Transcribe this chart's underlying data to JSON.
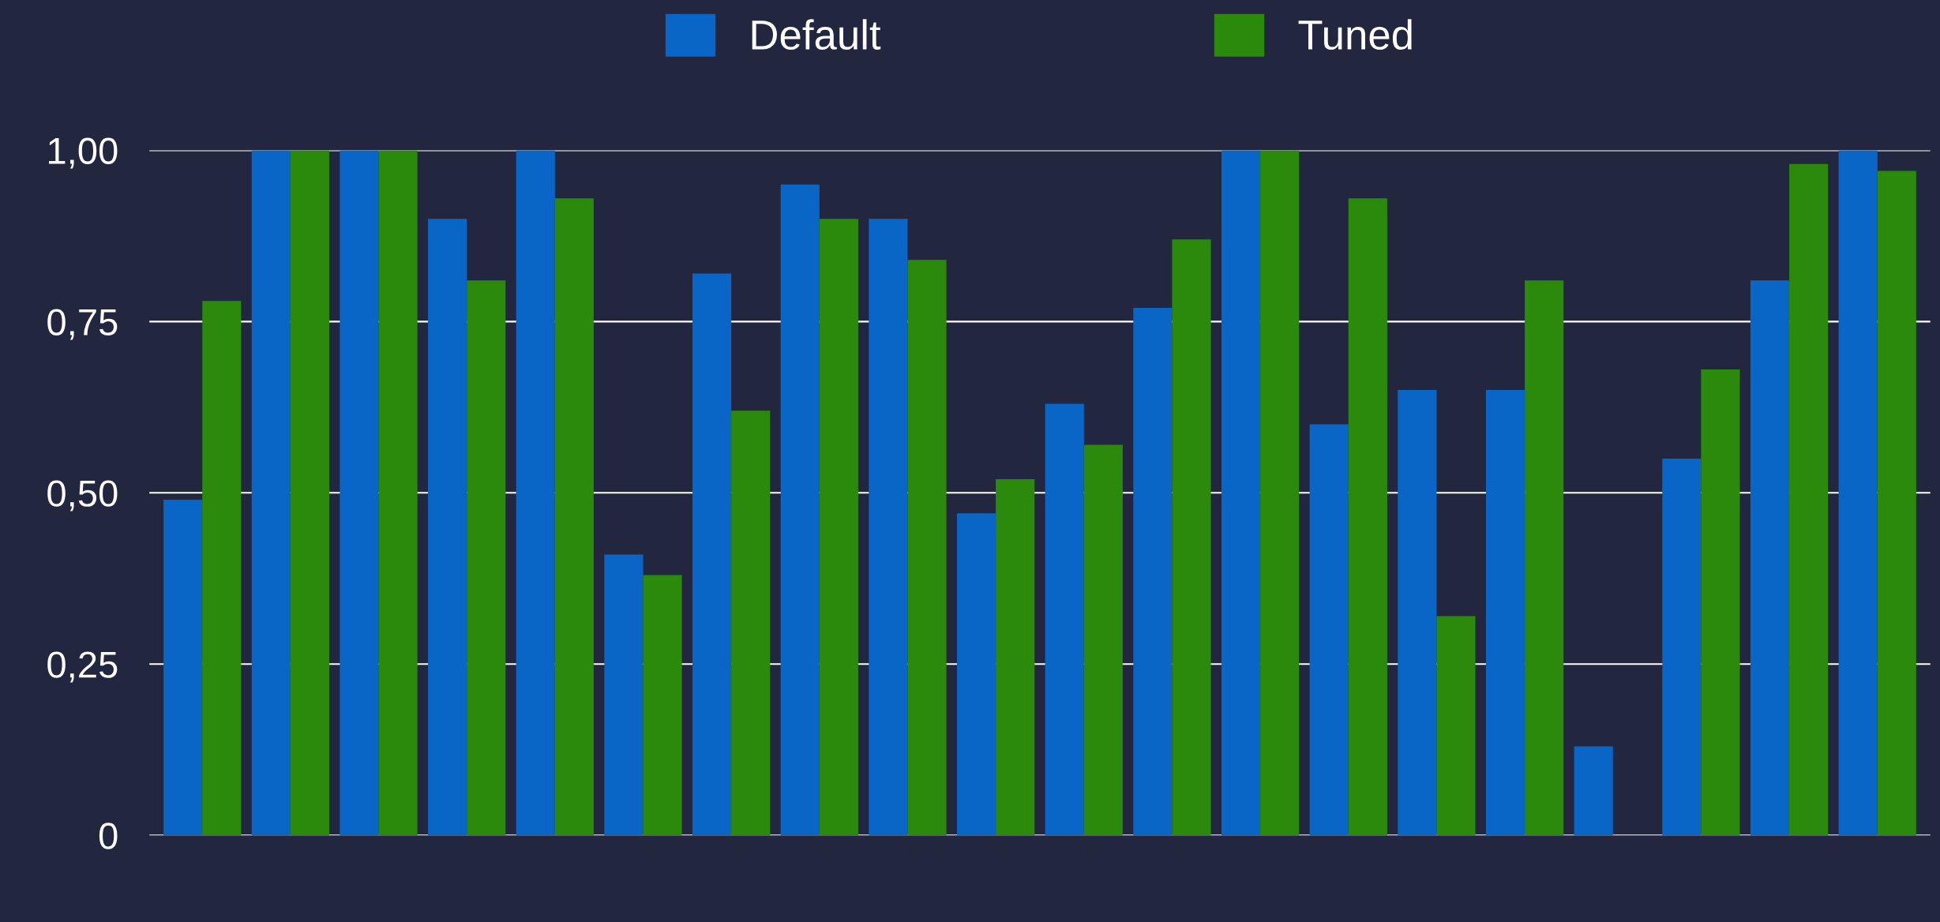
{
  "chart_data": {
    "type": "bar",
    "categories": [
      null,
      null,
      null,
      null,
      null,
      null,
      null,
      null,
      null,
      null,
      null,
      null,
      null,
      null,
      null,
      null,
      null,
      null,
      null,
      null
    ],
    "series": [
      {
        "name": "Default",
        "color": "#0a66c6",
        "values": [
          0.49,
          1.0,
          1.0,
          0.9,
          1.0,
          0.41,
          0.82,
          0.95,
          0.9,
          0.47,
          0.63,
          0.77,
          1.0,
          0.6,
          0.65,
          0.65,
          0.13,
          0.55,
          0.81,
          1.0
        ]
      },
      {
        "name": "Tuned",
        "color": "#2b8a0c",
        "values": [
          0.78,
          1.0,
          1.0,
          0.81,
          0.93,
          0.38,
          0.62,
          0.9,
          0.84,
          0.52,
          0.57,
          0.87,
          1.0,
          0.93,
          0.32,
          0.81,
          null,
          0.68,
          0.98,
          0.97
        ]
      }
    ],
    "ylim": [
      0,
      1.0
    ],
    "yticks": [
      0,
      {
        "value": 0.25,
        "label": "0,25"
      },
      {
        "value": 0.5,
        "label": "0,50"
      },
      {
        "value": 0.75,
        "label": "0,75"
      },
      {
        "value": 1.0,
        "label": "1,00"
      }
    ],
    "grid": "y",
    "legend": "top"
  }
}
